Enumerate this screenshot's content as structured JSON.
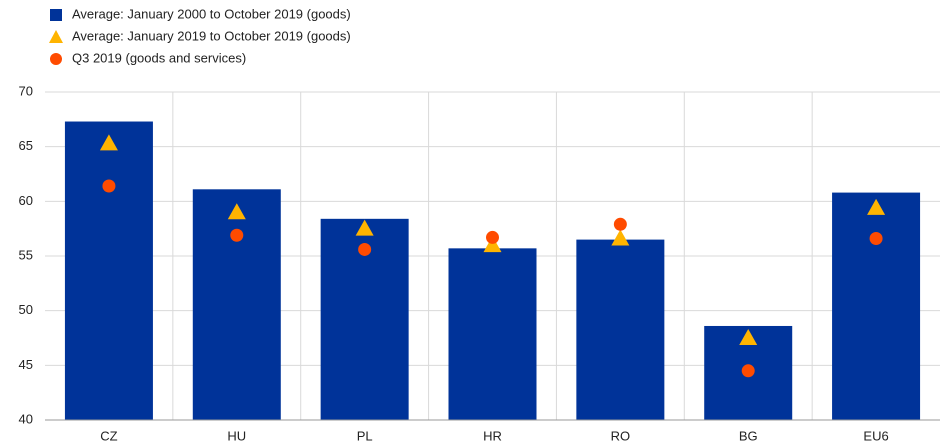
{
  "chart_data": {
    "type": "bar",
    "categories": [
      "CZ",
      "HU",
      "PL",
      "HR",
      "RO",
      "BG",
      "EU6"
    ],
    "series": [
      {
        "name": "Average: January 2000 to October 2019 (goods)",
        "color": "#003399",
        "marker": "bar",
        "values": [
          67.3,
          61.1,
          58.4,
          55.7,
          56.5,
          48.6,
          60.8
        ]
      },
      {
        "name": "Average: January 2019 to October 2019 (goods)",
        "color": "#ffb400",
        "marker": "triangle",
        "values": [
          65.3,
          59.0,
          57.5,
          56.0,
          56.6,
          47.5,
          59.4
        ]
      },
      {
        "name": "Q3 2019 (goods and services)",
        "color": "#ff4b00",
        "marker": "circle",
        "values": [
          61.4,
          56.9,
          55.6,
          56.7,
          57.9,
          44.5,
          56.6
        ]
      }
    ],
    "ylim": [
      40,
      70
    ],
    "yticks": [
      40,
      45,
      50,
      55,
      60,
      65,
      70
    ],
    "grid": true
  }
}
